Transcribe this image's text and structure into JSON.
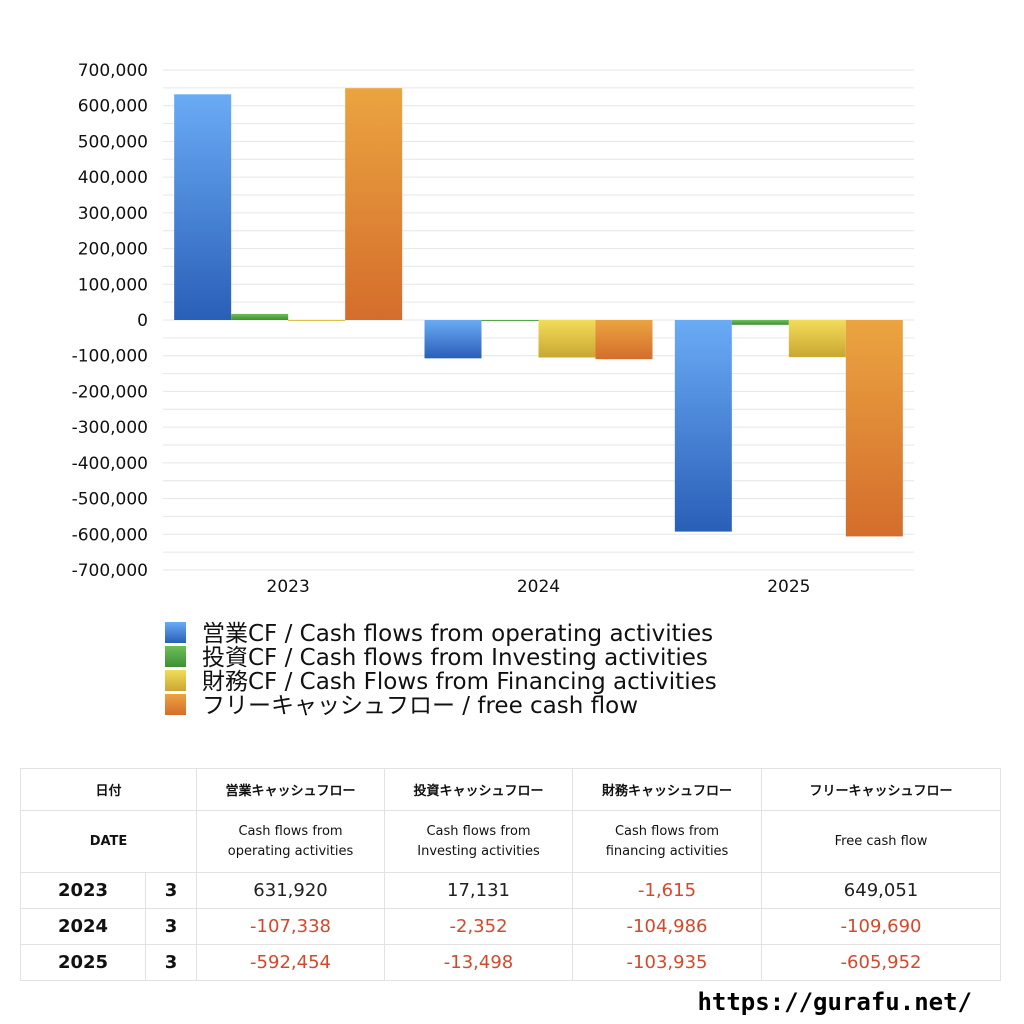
{
  "chart_data": {
    "type": "bar",
    "categories": [
      "2023",
      "2024",
      "2025"
    ],
    "series": [
      {
        "name": "営業CF / Cash flows from operating activities",
        "values": [
          631920,
          -107338,
          -592454
        ],
        "color_top": "#6aabf5",
        "color_bottom": "#2a5fb8"
      },
      {
        "name": "投資CF / Cash flows from Investing activities",
        "values": [
          17131,
          -2352,
          -13498
        ],
        "color_top": "#6cbf58",
        "color_bottom": "#3f8f35"
      },
      {
        "name": "財務CF / Cash Flows from Financing activities",
        "values": [
          -1615,
          -104986,
          -103935
        ],
        "color_top": "#f3dc5a",
        "color_bottom": "#c9a732"
      },
      {
        "name": "フリーキャッシュフロー / free cash flow",
        "values": [
          649051,
          -109690,
          -605952
        ],
        "color_top": "#eba440",
        "color_bottom": "#d46d2c"
      }
    ],
    "ylim": [
      -700000,
      700000
    ],
    "yticks": [
      700000,
      600000,
      500000,
      400000,
      300000,
      200000,
      100000,
      0,
      -100000,
      -200000,
      -300000,
      -400000,
      -500000,
      -600000,
      -700000
    ],
    "ytick_labels": [
      "700,000",
      "600,000",
      "500,000",
      "400,000",
      "300,000",
      "200,000",
      "100,000",
      "0",
      "-100,000",
      "-200,000",
      "-300,000",
      "-400,000",
      "-500,000",
      "-600,000",
      "-700,000"
    ],
    "grid": true,
    "legend_position": "bottom"
  },
  "table": {
    "header_jp": {
      "date": "日付",
      "operating": "営業キャッシュフロー",
      "investing": "投資キャッシュフロー",
      "financing": "財務キャッシュフロー",
      "free": "フリーキャッシュフロー"
    },
    "header_en": {
      "date": "DATE",
      "operating_1": "Cash flows from",
      "operating_2": "operating activities",
      "investing_1": "Cash flows from",
      "investing_2": "Investing activities",
      "financing_1": "Cash flows from",
      "financing_2": "financing activities",
      "free": "Free cash flow"
    },
    "rows": [
      {
        "year": "2023",
        "month": "3",
        "operating": "631,920",
        "investing": "17,131",
        "financing": "-1,615",
        "free": "649,051"
      },
      {
        "year": "2024",
        "month": "3",
        "operating": "-107,338",
        "investing": "-2,352",
        "financing": "-104,986",
        "free": "-109,690"
      },
      {
        "year": "2025",
        "month": "3",
        "operating": "-592,454",
        "investing": "-13,498",
        "financing": "-103,935",
        "free": "-605,952"
      }
    ]
  },
  "site_url": "https://gurafu.net/",
  "colors": {
    "negative_text": "#d4492b",
    "grid": "#e6e6e6"
  }
}
